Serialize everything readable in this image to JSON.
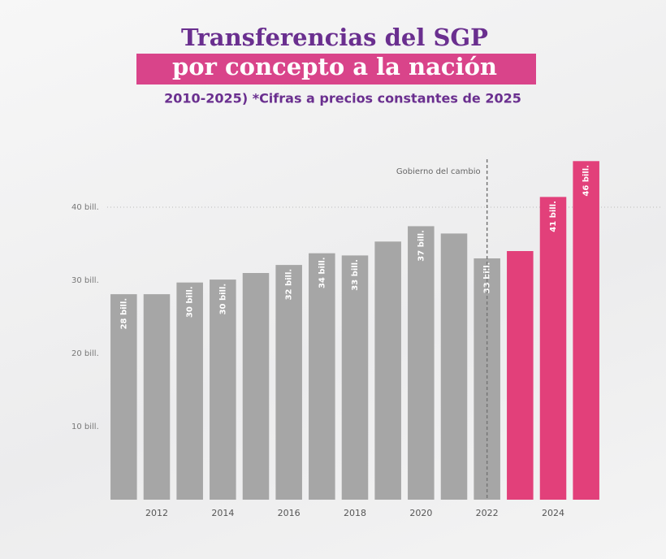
{
  "chart_data": {
    "type": "bar",
    "title": "Transferencias del SGP",
    "title_highlight": "por concepto a la nación",
    "subtitle": "2010-2025) *Cifras a precios constantes de 2025",
    "annotation": {
      "text": "Gobierno del cambio",
      "category_index": 11
    },
    "categories": [
      null,
      "2012",
      null,
      "2014",
      null,
      "2016",
      null,
      "2018",
      null,
      "2020",
      null,
      "2022",
      null,
      "2024",
      null
    ],
    "values": [
      28.1,
      28.1,
      29.7,
      30.1,
      31,
      32.1,
      33.7,
      33.4,
      35.3,
      37.4,
      36.4,
      33,
      34,
      41.4,
      46.3
    ],
    "value_labels": [
      "28 bill.",
      null,
      "30 bill.",
      "30 bill.",
      null,
      "32 bill.",
      "34 bill.",
      "33 bill.",
      null,
      "37 bill.",
      null,
      "33 bill.",
      null,
      "41 bill.",
      "46 bill."
    ],
    "colors": [
      "#a6a6a6",
      "#a6a6a6",
      "#a6a6a6",
      "#a6a6a6",
      "#a6a6a6",
      "#a6a6a6",
      "#a6a6a6",
      "#a6a6a6",
      "#a6a6a6",
      "#a6a6a6",
      "#a6a6a6",
      "#a6a6a6",
      "#e2407a",
      "#e2407a",
      "#e2407a"
    ],
    "ylim": [
      0,
      50
    ],
    "yticks": [
      {
        "value": 10,
        "label": "10 bill."
      },
      {
        "value": 20,
        "label": "20 bill."
      },
      {
        "value": 30,
        "label": "30 bill."
      },
      {
        "value": 40,
        "label": "40 bill."
      }
    ]
  }
}
